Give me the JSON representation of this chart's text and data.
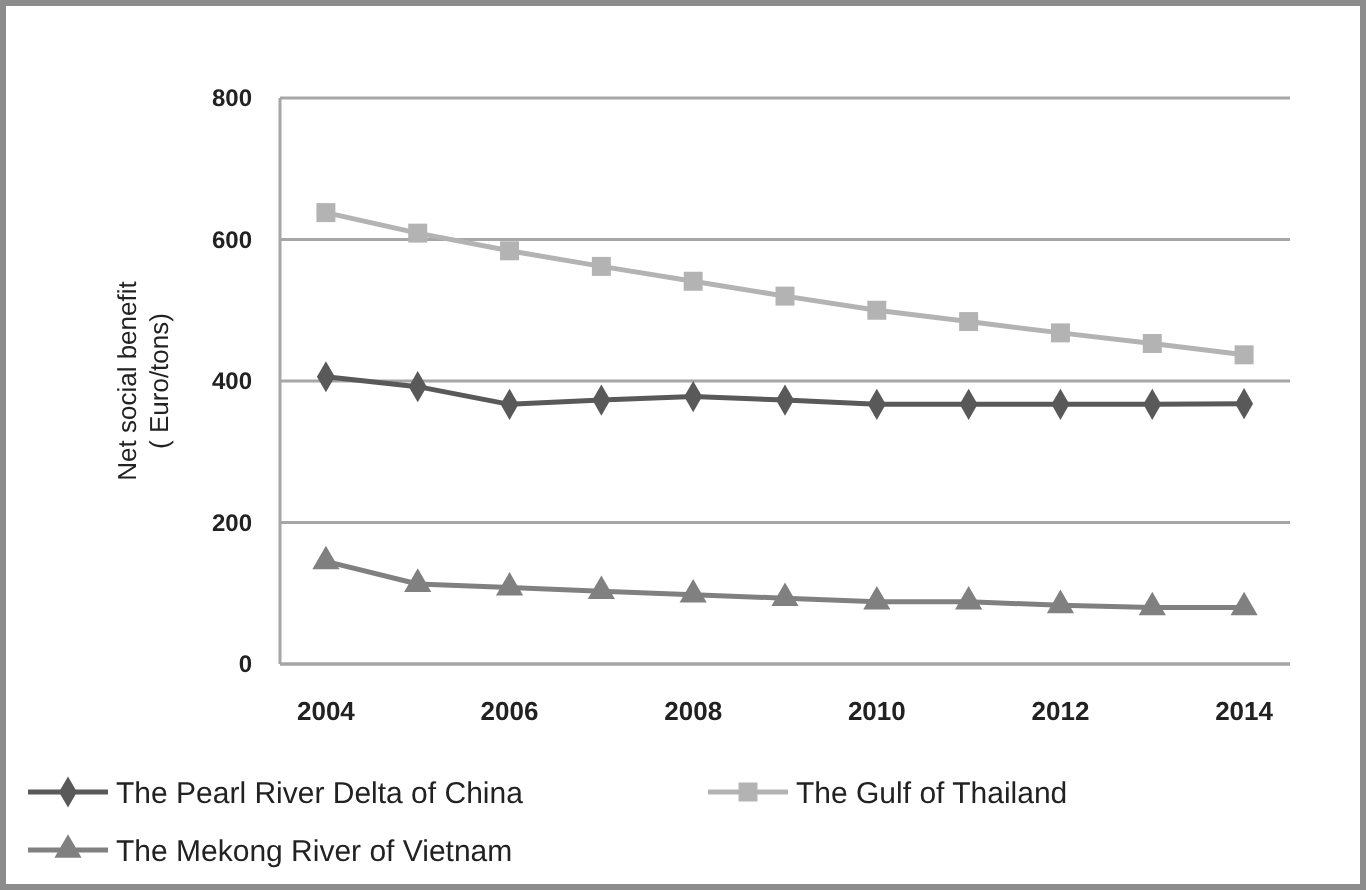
{
  "chart_data": {
    "type": "line",
    "ylabel": "Net social benefit\n( Euro/tons)",
    "categories": [
      "2004",
      null,
      "2006",
      null,
      "2008",
      null,
      "2010",
      null,
      "2012",
      null,
      "2014"
    ],
    "ylim": [
      0,
      800
    ],
    "yticks": [
      0,
      200,
      400,
      600,
      800
    ],
    "grid": "y",
    "legend": "bottom",
    "line_style": "solid",
    "series": [
      {
        "name": "The Pearl River Delta of China",
        "color": "#595959",
        "marker": "diamond",
        "values": [
          406,
          392,
          367,
          373,
          378,
          373,
          367,
          367,
          367,
          367,
          368
        ]
      },
      {
        "name": "The Gulf of Thailand",
        "color": "#b3b3b3",
        "marker": "square",
        "values": [
          638,
          609,
          584,
          562,
          541,
          520,
          500,
          484,
          468,
          453,
          437
        ]
      },
      {
        "name": "The Mekong River of Vietnam",
        "color": "#808080",
        "marker": "triangle",
        "values": [
          145,
          113,
          108,
          103,
          98,
          93,
          88,
          88,
          83,
          80,
          80
        ]
      }
    ]
  }
}
